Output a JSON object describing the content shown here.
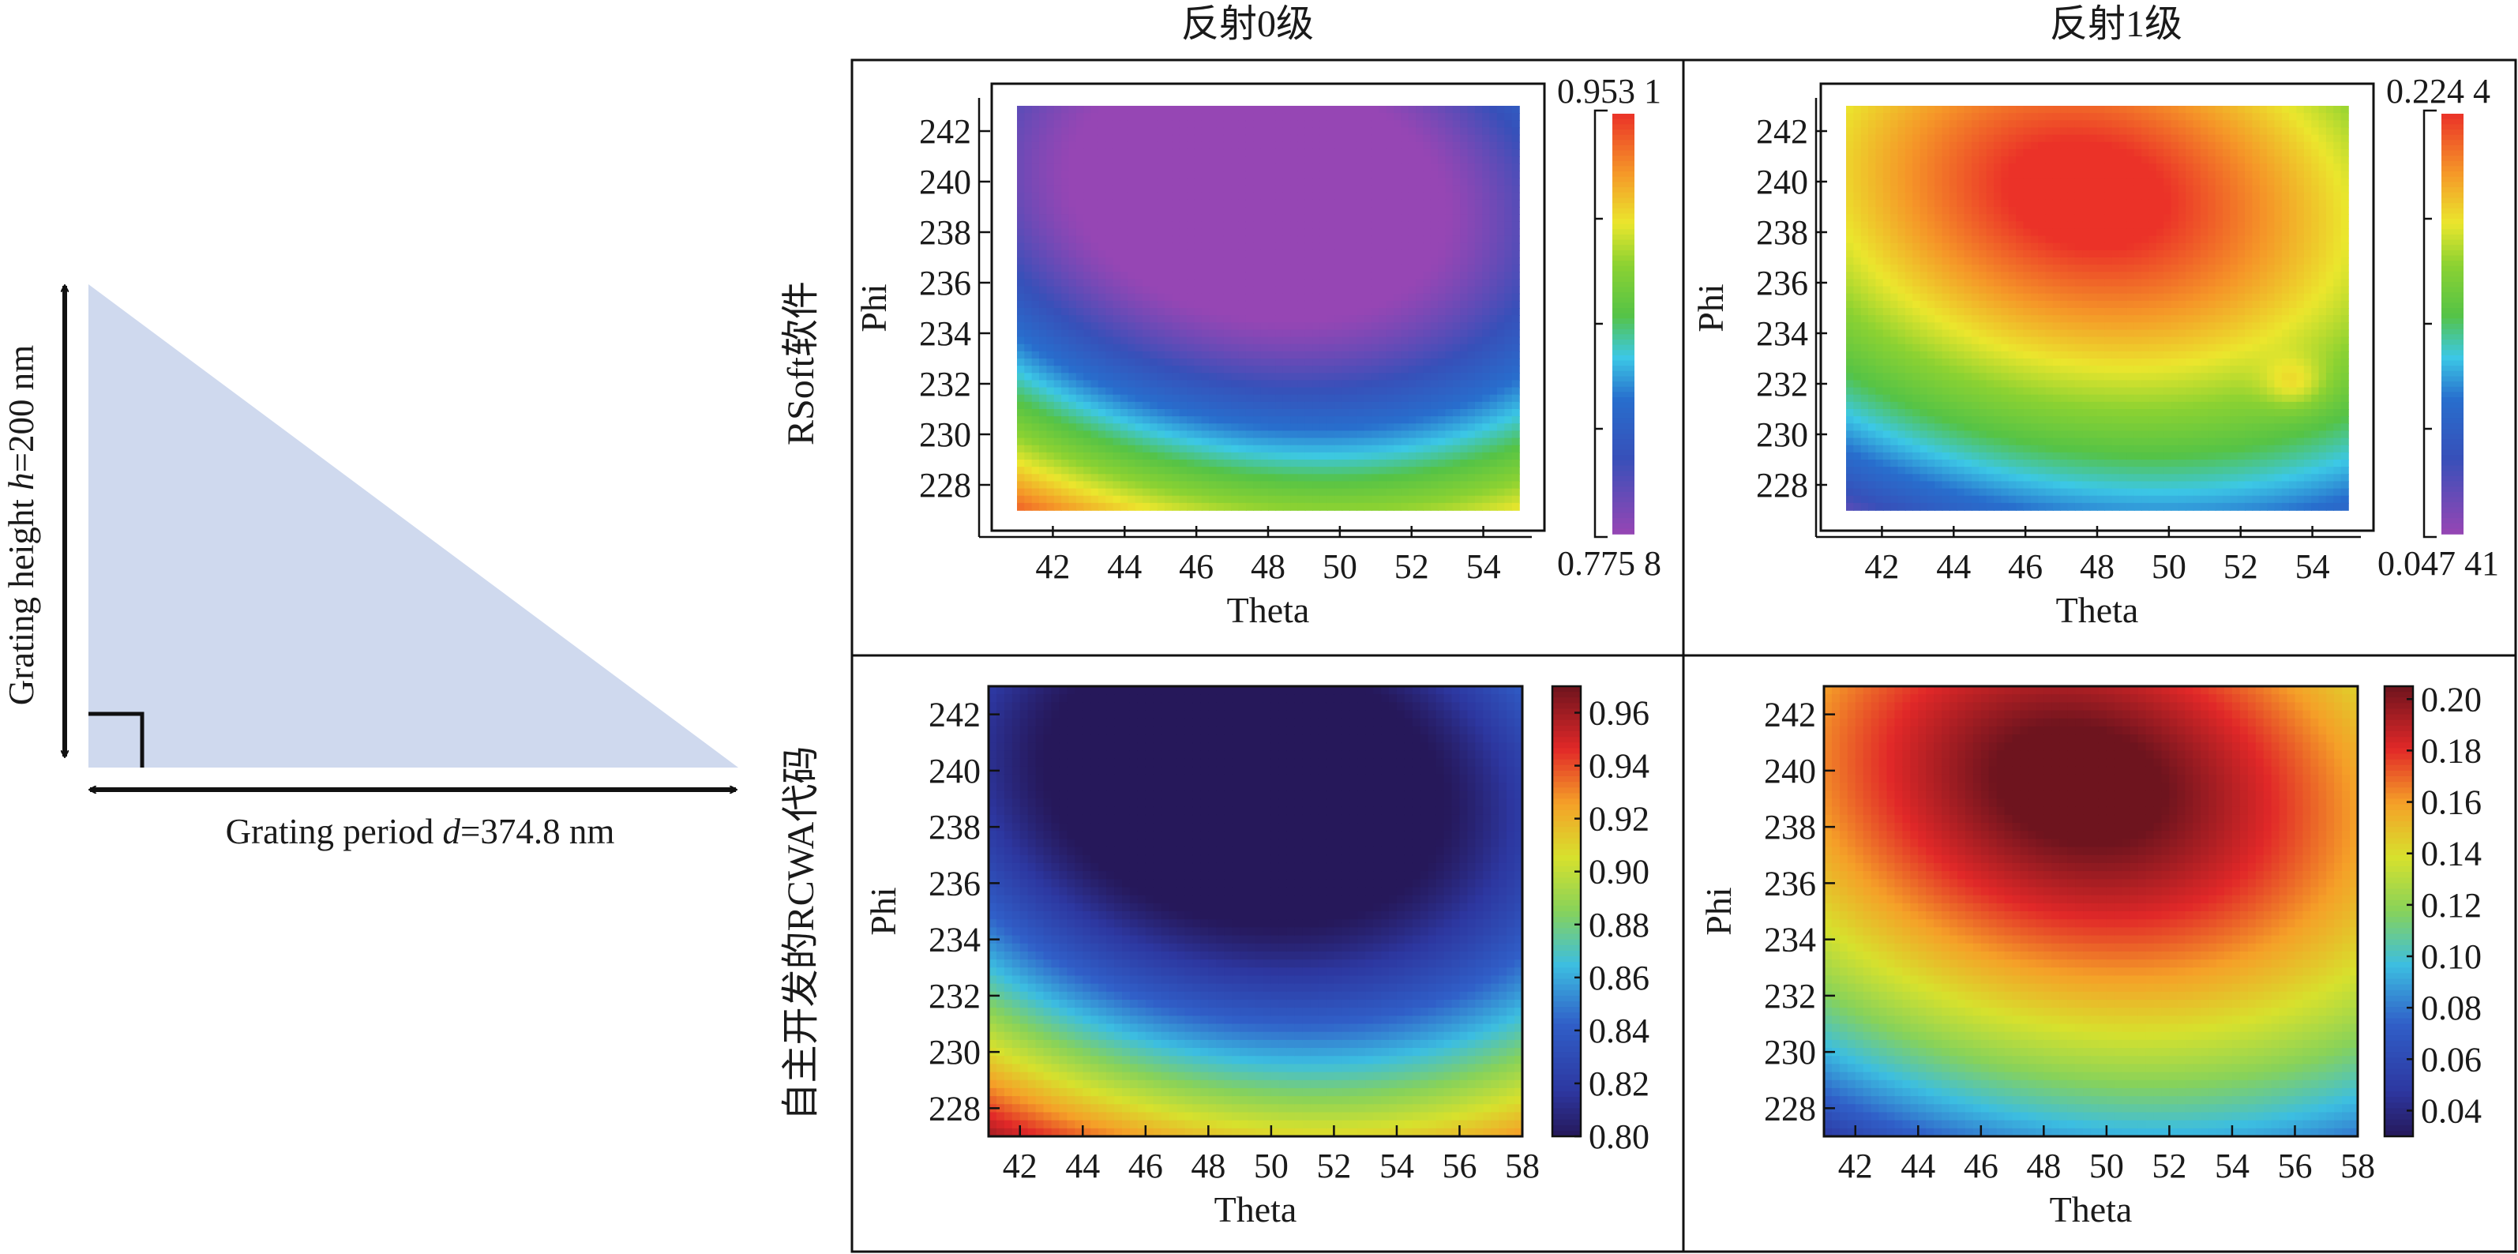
{
  "column_headers": [
    "反射0级",
    "反射1级"
  ],
  "row_labels": [
    "RSoft软件",
    "自主开发的RCWA代码"
  ],
  "diagram": {
    "height_prefix": "Grating height ",
    "height_var": "h",
    "height_value": "=200 nm",
    "period_prefix": "Grating period ",
    "period_var": "d",
    "period_value": "=374.8 nm",
    "fill_color": "#cfd9ee"
  },
  "chart_data": [
    {
      "type": "heatmap",
      "panel": "rsoft-order0",
      "xlabel": "Theta",
      "ylabel": "Phi",
      "xlim": [
        41,
        55
      ],
      "ylim": [
        227,
        243
      ],
      "x_ticks": [
        42,
        44,
        46,
        48,
        50,
        52,
        54
      ],
      "y_ticks": [
        228,
        230,
        232,
        234,
        236,
        238,
        240,
        242
      ],
      "colorbar": {
        "max_label": "0.953 1",
        "min_label": "0.775 8",
        "vmin": 0.7758,
        "vmax": 0.9531,
        "colormap": "rsoft"
      },
      "field": {
        "kind": "order0",
        "a": 0.8,
        "b": 0.2
      }
    },
    {
      "type": "heatmap",
      "panel": "rsoft-order1",
      "xlabel": "Theta",
      "ylabel": "Phi",
      "xlim": [
        41,
        55
      ],
      "ylim": [
        227,
        243
      ],
      "x_ticks": [
        42,
        44,
        46,
        48,
        50,
        52,
        54
      ],
      "y_ticks": [
        228,
        230,
        232,
        234,
        236,
        238,
        240,
        242
      ],
      "colorbar": {
        "max_label": "0.224 4",
        "min_label": "0.047 41",
        "vmin": 0.04741,
        "vmax": 0.2244,
        "colormap": "rsoft"
      },
      "field": {
        "kind": "order1",
        "a": 0.8,
        "b": 0.2,
        "hotspot": [
          53.5,
          232
        ]
      }
    },
    {
      "type": "heatmap",
      "panel": "rcwa-order0",
      "xlabel": "Theta",
      "ylabel": "Phi",
      "xlim": [
        41,
        58
      ],
      "ylim": [
        227,
        243
      ],
      "x_ticks": [
        42,
        44,
        46,
        48,
        50,
        52,
        54,
        56,
        58
      ],
      "y_ticks": [
        228,
        230,
        232,
        234,
        236,
        238,
        240,
        242
      ],
      "colorbar": {
        "vmin": 0.8,
        "vmax": 0.97,
        "ticks": [
          "0.80",
          "0.82",
          "0.84",
          "0.86",
          "0.88",
          "0.90",
          "0.92",
          "0.94",
          "0.96"
        ],
        "colormap": "jet"
      },
      "field": {
        "kind": "order0",
        "a": 0.8,
        "b": 0.2
      }
    },
    {
      "type": "heatmap",
      "panel": "rcwa-order1",
      "xlabel": "Theta",
      "ylabel": "Phi",
      "xlim": [
        41,
        58
      ],
      "ylim": [
        227,
        243
      ],
      "x_ticks": [
        42,
        44,
        46,
        48,
        50,
        52,
        54,
        56,
        58
      ],
      "y_ticks": [
        228,
        230,
        232,
        234,
        236,
        238,
        240,
        242
      ],
      "colorbar": {
        "vmin": 0.03,
        "vmax": 0.205,
        "ticks": [
          "0.04",
          "0.06",
          "0.08",
          "0.10",
          "0.12",
          "0.14",
          "0.16",
          "0.18",
          "0.20"
        ],
        "colormap": "jet"
      },
      "field": {
        "kind": "order1",
        "a": 0.8,
        "b": 0.2
      }
    }
  ]
}
